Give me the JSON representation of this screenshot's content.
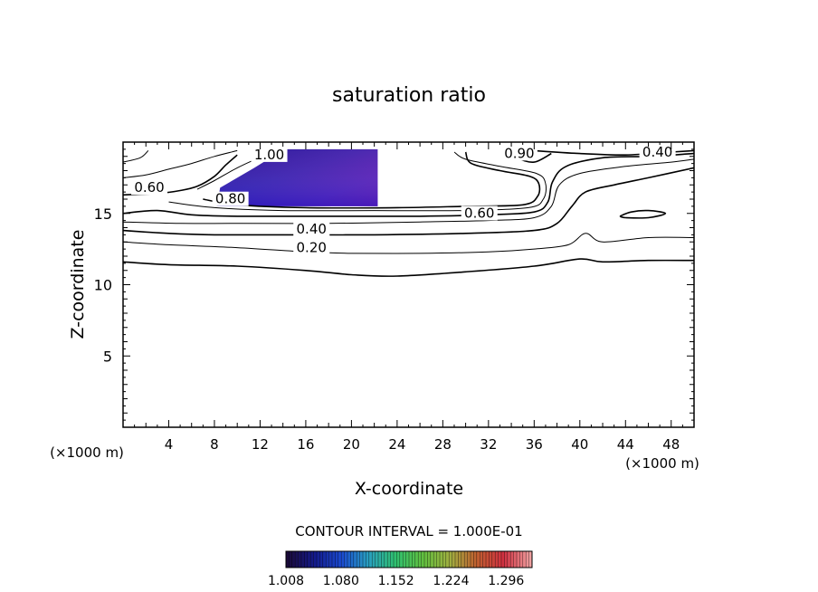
{
  "chart_data": {
    "type": "contour",
    "title": "saturation ratio",
    "xlabel": "X-coordinate",
    "ylabel": "Z-coordinate",
    "x_unit_label": "(×1000 m)",
    "y_unit_label": "(×1000 m)",
    "xlim": [
      0,
      50
    ],
    "ylim": [
      0,
      20
    ],
    "x_ticks": [
      4,
      8,
      12,
      16,
      20,
      24,
      28,
      32,
      36,
      40,
      44,
      48
    ],
    "y_ticks": [
      5,
      10,
      15
    ],
    "contour_interval_label": "CONTOUR INTERVAL = 1.000E-01",
    "colorbar": {
      "tick_labels": [
        "1.008",
        "1.080",
        "1.152",
        "1.224",
        "1.296"
      ],
      "min": 1.008,
      "max": 1.33,
      "colors": [
        "#1a0a3a",
        "#141a8a",
        "#1a4ad0",
        "#2aa0c0",
        "#30c070",
        "#60c040",
        "#a0b040",
        "#c06030",
        "#d03040",
        "#f0a0a0"
      ]
    },
    "contours": [
      {
        "level": 0.2,
        "label": "0.20",
        "label_at": [
          16.5,
          12.3
        ],
        "points": [
          [
            0,
            11.6
          ],
          [
            4,
            11.4
          ],
          [
            10,
            11.3
          ],
          [
            16,
            11.0
          ],
          [
            20,
            10.7
          ],
          [
            24,
            10.6
          ],
          [
            30,
            10.9
          ],
          [
            36,
            11.3
          ],
          [
            40,
            11.8
          ],
          [
            42,
            11.6
          ],
          [
            46,
            11.7
          ],
          [
            50,
            11.7
          ]
        ]
      },
      {
        "level": 0.3,
        "label": "",
        "points": [
          [
            0,
            13.0
          ],
          [
            4,
            12.8
          ],
          [
            10,
            12.6
          ],
          [
            16,
            12.3
          ],
          [
            20,
            12.2
          ],
          [
            26,
            12.2
          ],
          [
            32,
            12.3
          ],
          [
            36,
            12.5
          ],
          [
            39,
            12.8
          ],
          [
            40.5,
            13.6
          ],
          [
            42,
            13.0
          ],
          [
            46,
            13.3
          ],
          [
            50,
            13.3
          ]
        ]
      },
      {
        "level": 0.4,
        "label": "0.40",
        "label_at": [
          16.5,
          13.6
        ],
        "points": [
          [
            0,
            13.8
          ],
          [
            4,
            13.6
          ],
          [
            8,
            13.5
          ],
          [
            14,
            13.5
          ],
          [
            22,
            13.5
          ],
          [
            30,
            13.6
          ],
          [
            36,
            13.8
          ],
          [
            38,
            14.3
          ],
          [
            39.3,
            15.5
          ],
          [
            40.5,
            16.5
          ],
          [
            43,
            17.0
          ],
          [
            46,
            17.5
          ],
          [
            50,
            18.2
          ]
        ]
      },
      {
        "level": 0.5,
        "label": "",
        "points": [
          [
            0,
            14.4
          ],
          [
            5,
            14.3
          ],
          [
            10,
            14.3
          ],
          [
            18,
            14.3
          ],
          [
            26,
            14.4
          ],
          [
            32,
            14.5
          ],
          [
            36,
            14.7
          ],
          [
            37.5,
            15.5
          ],
          [
            38.2,
            17.0
          ],
          [
            40,
            17.8
          ],
          [
            44,
            18.3
          ],
          [
            48,
            18.6
          ],
          [
            50,
            18.8
          ]
        ]
      },
      {
        "level": 0.6,
        "label": "0.60",
        "label_at": [
          31.2,
          14.7
        ],
        "points": [
          [
            0,
            15.0
          ],
          [
            3,
            15.2
          ],
          [
            6,
            14.9
          ],
          [
            10,
            14.8
          ],
          [
            18,
            14.8
          ],
          [
            26,
            14.8
          ],
          [
            32,
            14.9
          ],
          [
            36,
            15.1
          ],
          [
            37.2,
            15.8
          ],
          [
            37.6,
            17.2
          ],
          [
            38.8,
            18.3
          ],
          [
            42,
            18.9
          ],
          [
            46,
            19.0
          ],
          [
            50,
            19.2
          ]
        ]
      },
      {
        "level": 0.7,
        "label": "",
        "points": [
          [
            4,
            15.8
          ],
          [
            8,
            15.4
          ],
          [
            14,
            15.2
          ],
          [
            22,
            15.2
          ],
          [
            30,
            15.2
          ],
          [
            35.5,
            15.4
          ],
          [
            36.8,
            16.0
          ],
          [
            37.0,
            17.1
          ],
          [
            36.2,
            17.8
          ],
          [
            33,
            18.3
          ],
          [
            30,
            18.8
          ],
          [
            29,
            19.3
          ]
        ]
      },
      {
        "level": 0.8,
        "label": "0.80",
        "label_at": [
          9.4,
          15.7
        ],
        "points": [
          [
            7,
            16.0
          ],
          [
            10,
            15.6
          ],
          [
            16,
            15.4
          ],
          [
            24,
            15.4
          ],
          [
            30,
            15.5
          ],
          [
            35,
            15.6
          ],
          [
            36.3,
            16.2
          ],
          [
            36.4,
            17.1
          ],
          [
            35.6,
            17.6
          ],
          [
            33,
            18.0
          ],
          [
            30.5,
            18.5
          ],
          [
            30,
            19.3
          ]
        ]
      },
      {
        "level": 0.9,
        "label": "",
        "points": [
          [
            6.5,
            16.7
          ],
          [
            8,
            17.3
          ],
          [
            10,
            18.2
          ],
          [
            12,
            18.9
          ],
          [
            14,
            19.3
          ]
        ]
      },
      {
        "level": 0.4,
        "label": "0.40",
        "label_at": [
          46.8,
          19.0
        ],
        "points": [
          [
            36,
            19.4
          ],
          [
            40,
            19.2
          ],
          [
            44,
            19.1
          ],
          [
            48,
            19.3
          ],
          [
            50,
            19.4
          ]
        ]
      },
      {
        "level": 0.6,
        "label": "0.60",
        "label_at": [
          2.3,
          16.5
        ],
        "points": [
          [
            0,
            16.3
          ],
          [
            3,
            16.4
          ],
          [
            5,
            16.6
          ],
          [
            6.5,
            16.9
          ],
          [
            8,
            17.6
          ],
          [
            9,
            18.4
          ],
          [
            10,
            19.1
          ]
        ]
      },
      {
        "level": 0.7,
        "label": "",
        "points": [
          [
            0,
            17.5
          ],
          [
            2,
            17.7
          ],
          [
            4,
            18.1
          ],
          [
            6,
            18.5
          ],
          [
            8,
            19.0
          ],
          [
            10,
            19.4
          ]
        ]
      },
      {
        "level": 0.5,
        "label": "",
        "points": [
          [
            0,
            18.6
          ],
          [
            1.5,
            18.9
          ],
          [
            2.2,
            19.4
          ]
        ]
      },
      {
        "level": 0.8,
        "label": "",
        "points": [
          [
            34,
            19.4
          ],
          [
            34.5,
            18.9
          ],
          [
            36,
            18.6
          ],
          [
            37.5,
            19.2
          ]
        ]
      },
      {
        "level": 0.6,
        "label": "",
        "points": [
          [
            43.5,
            14.8
          ],
          [
            44.5,
            15.1
          ],
          [
            46,
            15.2
          ],
          [
            47.5,
            15.0
          ],
          [
            46,
            14.7
          ],
          [
            44,
            14.7
          ],
          [
            43.5,
            14.8
          ]
        ]
      },
      {
        "level": 0.9,
        "label": "0.90",
        "label_at": [
          34.7,
          18.9
        ],
        "points": []
      },
      {
        "level": 1.0,
        "label": "1.00",
        "label_at": [
          12.8,
          18.8
        ],
        "points": []
      }
    ],
    "filled_region": {
      "level_min": 1.008,
      "description_units": "supersaturated region",
      "polygon": [
        [
          8.2,
          15.5
        ],
        [
          8.5,
          16.8
        ],
        [
          10,
          17.5
        ],
        [
          11.5,
          18.2
        ],
        [
          12.5,
          18.7
        ],
        [
          13.5,
          19.5
        ],
        [
          22.3,
          19.5
        ],
        [
          22.3,
          15.5
        ],
        [
          8.2,
          15.5
        ]
      ]
    }
  }
}
